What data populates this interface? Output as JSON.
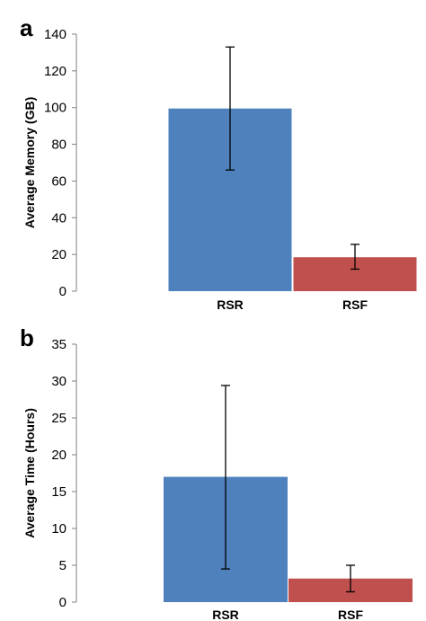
{
  "chart_data": [
    {
      "panel_label": "a",
      "type": "bar",
      "categories": [
        "RSR",
        "RSF"
      ],
      "values": [
        99.5,
        18.5
      ],
      "error": [
        [
          66,
          133
        ],
        [
          12,
          25.5
        ]
      ],
      "colors": [
        "#4f81bd",
        "#c0504d"
      ],
      "title": "",
      "xlabel": "",
      "ylabel": "Average Memory (GB)",
      "ylim": [
        0,
        140
      ],
      "yticks": [
        0,
        20,
        40,
        60,
        80,
        100,
        120,
        140
      ],
      "grid": false,
      "legend": "none"
    },
    {
      "panel_label": "b",
      "type": "bar",
      "categories": [
        "RSR",
        "RSF"
      ],
      "values": [
        17,
        3.2
      ],
      "error": [
        [
          4.5,
          29.4
        ],
        [
          1.4,
          5
        ]
      ],
      "colors": [
        "#4f81bd",
        "#c0504d"
      ],
      "title": "",
      "xlabel": "",
      "ylabel": "Average Time (Hours)",
      "ylim": [
        0,
        35
      ],
      "yticks": [
        0,
        5,
        10,
        15,
        20,
        25,
        30,
        35
      ],
      "grid": false,
      "legend": "none"
    }
  ]
}
